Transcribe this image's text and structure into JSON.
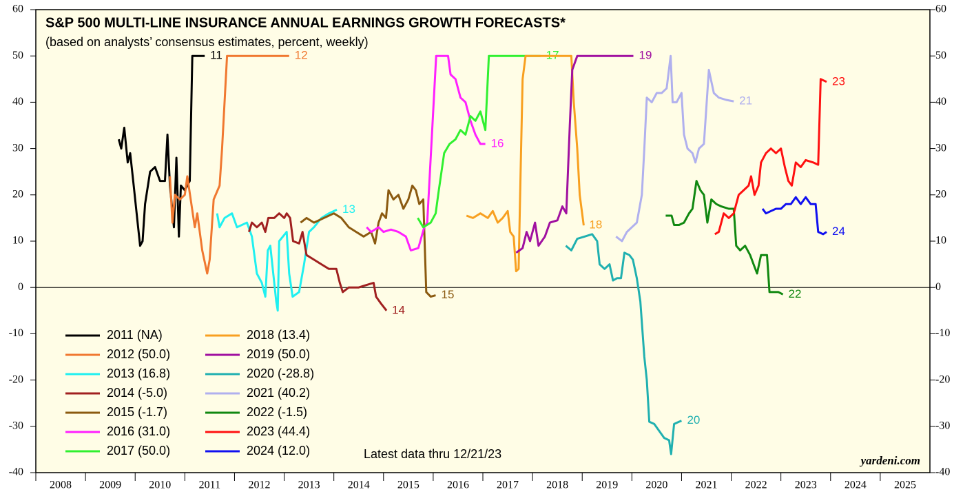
{
  "chart_data": {
    "type": "line",
    "title": "S&P 500 MULTI-LINE INSURANCE ANNUAL EARNINGS GROWTH FORECASTS*",
    "subtitle": "(based on analysts’ consensus estimates, percent, weekly)",
    "note": "Latest data thru 12/21/23",
    "source": "yardeni.com",
    "xlim": [
      2008,
      2026
    ],
    "xticks": [
      {
        "value": 2008.5,
        "label": "2008"
      },
      {
        "value": 2009.5,
        "label": "2009"
      },
      {
        "value": 2010.5,
        "label": "2010"
      },
      {
        "value": 2011.5,
        "label": "2011"
      },
      {
        "value": 2012.5,
        "label": "2012"
      },
      {
        "value": 2013.5,
        "label": "2013"
      },
      {
        "value": 2014.5,
        "label": "2014"
      },
      {
        "value": 2015.5,
        "label": "2015"
      },
      {
        "value": 2016.5,
        "label": "2016"
      },
      {
        "value": 2017.5,
        "label": "2017"
      },
      {
        "value": 2018.5,
        "label": "2018"
      },
      {
        "value": 2019.5,
        "label": "2019"
      },
      {
        "value": 2020.5,
        "label": "2020"
      },
      {
        "value": 2021.5,
        "label": "2021"
      },
      {
        "value": 2022.5,
        "label": "2022"
      },
      {
        "value": 2023.5,
        "label": "2023"
      },
      {
        "value": 2024.5,
        "label": "2024"
      },
      {
        "value": 2025.5,
        "label": "2025"
      }
    ],
    "ylim": [
      -40,
      60
    ],
    "yticks": [
      -40,
      -30,
      -20,
      -10,
      0,
      10,
      20,
      30,
      40,
      50,
      60
    ],
    "series": [
      {
        "name": "2011 (NA)",
        "label": "11",
        "color": "#000000",
        "x": [
          2009.67,
          2009.72,
          2009.78,
          2009.85,
          2009.9,
          2009.97,
          2010.05,
          2010.1,
          2010.15,
          2010.2,
          2010.3,
          2010.4,
          2010.5,
          2010.6,
          2010.65,
          2010.7,
          2010.78,
          2010.83,
          2010.88,
          2010.92,
          2011.0,
          2011.1,
          2011.15,
          2011.4
        ],
        "values": [
          32,
          30,
          34.5,
          27,
          29,
          22,
          14,
          9,
          10,
          18,
          25,
          26,
          23,
          23,
          33,
          22,
          13,
          28,
          11,
          22,
          21,
          23,
          50,
          50
        ]
      },
      {
        "name": "2012 (50.0)",
        "label": "12",
        "color": "#f07830",
        "x": [
          2010.7,
          2010.75,
          2010.8,
          2010.9,
          2011.0,
          2011.05,
          2011.2,
          2011.25,
          2011.35,
          2011.45,
          2011.5,
          2011.58,
          2011.7,
          2011.75,
          2011.8,
          2011.85,
          2013.1
        ],
        "values": [
          24,
          14,
          20,
          19,
          20,
          24,
          13,
          16,
          8,
          3,
          6,
          19,
          22,
          30,
          40,
          50,
          50
        ]
      },
      {
        "name": "2013 (16.8)",
        "label": "13",
        "color": "#20f0f0",
        "x": [
          2011.65,
          2011.7,
          2011.8,
          2011.95,
          2012.05,
          2012.25,
          2012.35,
          2012.45,
          2012.55,
          2012.62,
          2012.67,
          2012.72,
          2012.78,
          2012.84,
          2012.87,
          2012.9,
          2013.05,
          2013.1,
          2013.17,
          2013.3,
          2013.4,
          2013.5,
          2013.6,
          2013.75,
          2013.9,
          2014.06
        ],
        "values": [
          16,
          13,
          15,
          16,
          13,
          14,
          11,
          3,
          1,
          -2,
          8,
          9,
          3,
          -3,
          -5,
          10,
          12,
          3,
          -2,
          -1,
          5,
          12,
          13,
          15,
          16,
          16.8
        ]
      },
      {
        "name": "2014 (-5.0)",
        "label": "14",
        "color": "#a02020",
        "x": [
          2012.29,
          2012.35,
          2012.45,
          2012.55,
          2012.62,
          2012.68,
          2012.8,
          2012.9,
          2013.0,
          2013.05,
          2013.12,
          2013.18,
          2013.3,
          2013.37,
          2013.45,
          2013.6,
          2013.75,
          2013.9,
          2014.05,
          2014.12,
          2014.18,
          2014.3,
          2014.5,
          2014.65,
          2014.8,
          2014.85,
          2014.95,
          2015.06
        ],
        "values": [
          12,
          14,
          13,
          14,
          12,
          15,
          15,
          16,
          15,
          16,
          15,
          10,
          9.5,
          12,
          7,
          6,
          5,
          4,
          4,
          1,
          -1,
          0,
          0,
          0.5,
          1,
          -2,
          -3.5,
          -5
        ]
      },
      {
        "name": "2015 (-1.7)",
        "label": "15",
        "color": "#8b5a10",
        "x": [
          2013.33,
          2013.45,
          2013.6,
          2013.8,
          2014.0,
          2014.15,
          2014.3,
          2014.45,
          2014.6,
          2014.75,
          2014.83,
          2014.9,
          2014.97,
          2015.05,
          2015.1,
          2015.2,
          2015.3,
          2015.4,
          2015.5,
          2015.58,
          2015.65,
          2015.72,
          2015.8,
          2015.86,
          2015.95,
          2016.05
        ],
        "values": [
          14,
          15,
          14,
          15,
          16,
          15,
          13,
          12,
          11,
          12,
          9.5,
          14,
          16,
          15,
          21,
          19,
          20,
          17,
          19,
          22,
          21,
          18,
          19,
          -1,
          -2,
          -1.7
        ]
      },
      {
        "name": "2016 (31.0)",
        "label": "16",
        "color": "#ff20ff",
        "x": [
          2014.66,
          2014.75,
          2014.9,
          2015.0,
          2015.15,
          2015.3,
          2015.45,
          2015.55,
          2015.7,
          2015.82,
          2015.88,
          2016.06,
          2016.3,
          2016.35,
          2016.45,
          2016.55,
          2016.65,
          2016.75,
          2016.85,
          2016.95,
          2017.05
        ],
        "values": [
          13,
          12,
          13,
          12,
          12.5,
          12,
          11,
          8,
          8.5,
          13,
          14,
          50,
          50,
          46,
          45,
          41,
          40,
          36,
          33,
          31,
          31
        ]
      },
      {
        "name": "2017 (50.0)",
        "label": "17",
        "color": "#30f030",
        "x": [
          2015.69,
          2015.8,
          2015.95,
          2016.05,
          2016.1,
          2016.22,
          2016.33,
          2016.45,
          2016.55,
          2016.65,
          2016.75,
          2016.85,
          2016.95,
          2017.05,
          2017.12,
          2018.16
        ],
        "values": [
          15,
          13,
          14,
          16,
          20,
          29,
          31,
          32,
          34,
          33,
          37,
          36,
          38,
          34,
          50,
          50
        ]
      },
      {
        "name": "2018 (13.4)",
        "label": "18",
        "color": "#f8a020",
        "x": [
          2016.67,
          2016.8,
          2016.95,
          2017.1,
          2017.2,
          2017.3,
          2017.4,
          2017.5,
          2017.55,
          2017.62,
          2017.67,
          2017.72,
          2017.76,
          2017.8,
          2017.86,
          2018.78,
          2018.83,
          2018.9,
          2018.95,
          2019.03
        ],
        "values": [
          15.5,
          15,
          16,
          15,
          16.5,
          14,
          15,
          16.5,
          12,
          11,
          3.5,
          4,
          25,
          45,
          50,
          50,
          40,
          30,
          20,
          13.4
        ]
      },
      {
        "name": "2019 (50.0)",
        "label": "19",
        "color": "#a010a0",
        "x": [
          2017.67,
          2017.8,
          2017.88,
          2017.95,
          2018.05,
          2018.12,
          2018.25,
          2018.35,
          2018.5,
          2018.6,
          2018.68,
          2018.75,
          2018.8,
          2018.9,
          2020.03
        ],
        "values": [
          7.5,
          8.5,
          12,
          10,
          14,
          9,
          11,
          14,
          14.5,
          17.5,
          16,
          35,
          47,
          50,
          50
        ]
      },
      {
        "name": "2020 (-28.8)",
        "label": "20",
        "color": "#20b0b0",
        "x": [
          2018.67,
          2018.78,
          2018.9,
          2019.05,
          2019.2,
          2019.3,
          2019.35,
          2019.45,
          2019.55,
          2019.62,
          2019.7,
          2019.78,
          2019.85,
          2019.95,
          2020.02,
          2020.1,
          2020.17,
          2020.25,
          2020.3,
          2020.35,
          2020.45,
          2020.55,
          2020.65,
          2020.75,
          2020.79,
          2020.85,
          2020.95,
          2021.0
        ],
        "values": [
          9,
          8,
          10.5,
          11,
          11.5,
          10,
          5,
          4,
          5,
          1.5,
          2,
          2,
          7.5,
          7,
          6,
          2,
          -3,
          -15,
          -20,
          -29,
          -29.5,
          -31,
          -32.5,
          -33,
          -36,
          -29.5,
          -29,
          -28.8
        ]
      },
      {
        "name": "2021 (40.2)",
        "label": "21",
        "color": "#b0b0ee",
        "x": [
          2019.68,
          2019.8,
          2019.9,
          2020.0,
          2020.1,
          2020.2,
          2020.25,
          2020.3,
          2020.4,
          2020.5,
          2020.6,
          2020.7,
          2020.78,
          2020.82,
          2020.9,
          2021.0,
          2021.05,
          2021.12,
          2021.22,
          2021.28,
          2021.35,
          2021.45,
          2021.55,
          2021.65,
          2021.75,
          2021.9,
          2022.05
        ],
        "values": [
          11,
          10,
          12,
          13,
          14,
          20,
          30,
          41,
          40,
          42,
          42,
          43,
          50,
          40,
          40,
          42,
          33,
          30,
          29,
          27,
          30,
          31,
          47,
          42,
          41,
          40.5,
          40.2
        ]
      },
      {
        "name": "2022 (-1.5)",
        "label": "22",
        "color": "#108810",
        "x": [
          2020.68,
          2020.8,
          2020.85,
          2020.95,
          2021.05,
          2021.15,
          2021.22,
          2021.3,
          2021.38,
          2021.45,
          2021.52,
          2021.6,
          2021.7,
          2021.8,
          2021.95,
          2022.05,
          2022.1,
          2022.18,
          2022.28,
          2022.38,
          2022.45,
          2022.52,
          2022.6,
          2022.72,
          2022.77,
          2022.85,
          2022.95,
          2023.04
        ],
        "values": [
          15.5,
          15.5,
          13.5,
          13.5,
          14,
          16,
          17,
          23,
          21,
          20,
          14,
          19,
          18,
          17.5,
          17,
          17,
          9,
          8,
          9,
          7,
          5,
          3,
          7,
          7,
          -1,
          -1,
          -1,
          -1.5
        ]
      },
      {
        "name": "2023 (44.4)",
        "label": "23",
        "color": "#ff1010",
        "x": [
          2021.67,
          2021.75,
          2021.85,
          2021.95,
          2022.05,
          2022.15,
          2022.25,
          2022.35,
          2022.4,
          2022.47,
          2022.55,
          2022.6,
          2022.7,
          2022.8,
          2022.9,
          2023.0,
          2023.08,
          2023.15,
          2023.22,
          2023.3,
          2023.4,
          2023.5,
          2023.65,
          2023.75,
          2023.8,
          2023.92
        ],
        "values": [
          11.5,
          12,
          16,
          15,
          16,
          20,
          21,
          22,
          24,
          20,
          22,
          27,
          29,
          30,
          29,
          30,
          26,
          23,
          22,
          27,
          26,
          27.5,
          27,
          26.5,
          45,
          44.4
        ]
      },
      {
        "name": "2024 (12.0)",
        "label": "24",
        "color": "#1010f0",
        "x": [
          2022.63,
          2022.7,
          2022.8,
          2022.9,
          2023.0,
          2023.1,
          2023.2,
          2023.3,
          2023.4,
          2023.5,
          2023.6,
          2023.7,
          2023.75,
          2023.85,
          2023.92
        ],
        "values": [
          17,
          16,
          16.5,
          17,
          17,
          18,
          18,
          19.5,
          18,
          19.5,
          18,
          18,
          12,
          11.5,
          12
        ]
      }
    ]
  }
}
